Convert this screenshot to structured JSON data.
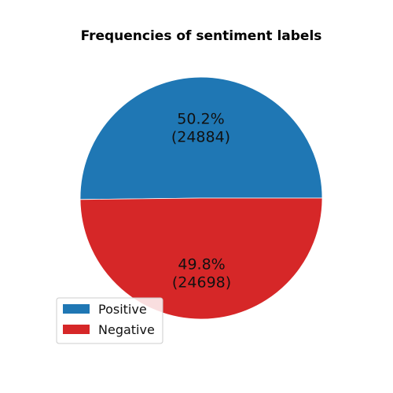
{
  "chart_data": {
    "type": "pie",
    "title": "Frequencies of sentiment labels",
    "categories": [
      "Positive",
      "Negative"
    ],
    "values": [
      24884,
      24698
    ],
    "percent_labels": [
      "50.2%",
      "49.8%"
    ],
    "count_labels": [
      "(24884)",
      "(24698)"
    ],
    "colors": [
      "#1f77b4",
      "#d62728"
    ],
    "legend": {
      "placement": "lower-left",
      "entries": [
        "Positive",
        "Negative"
      ]
    }
  }
}
